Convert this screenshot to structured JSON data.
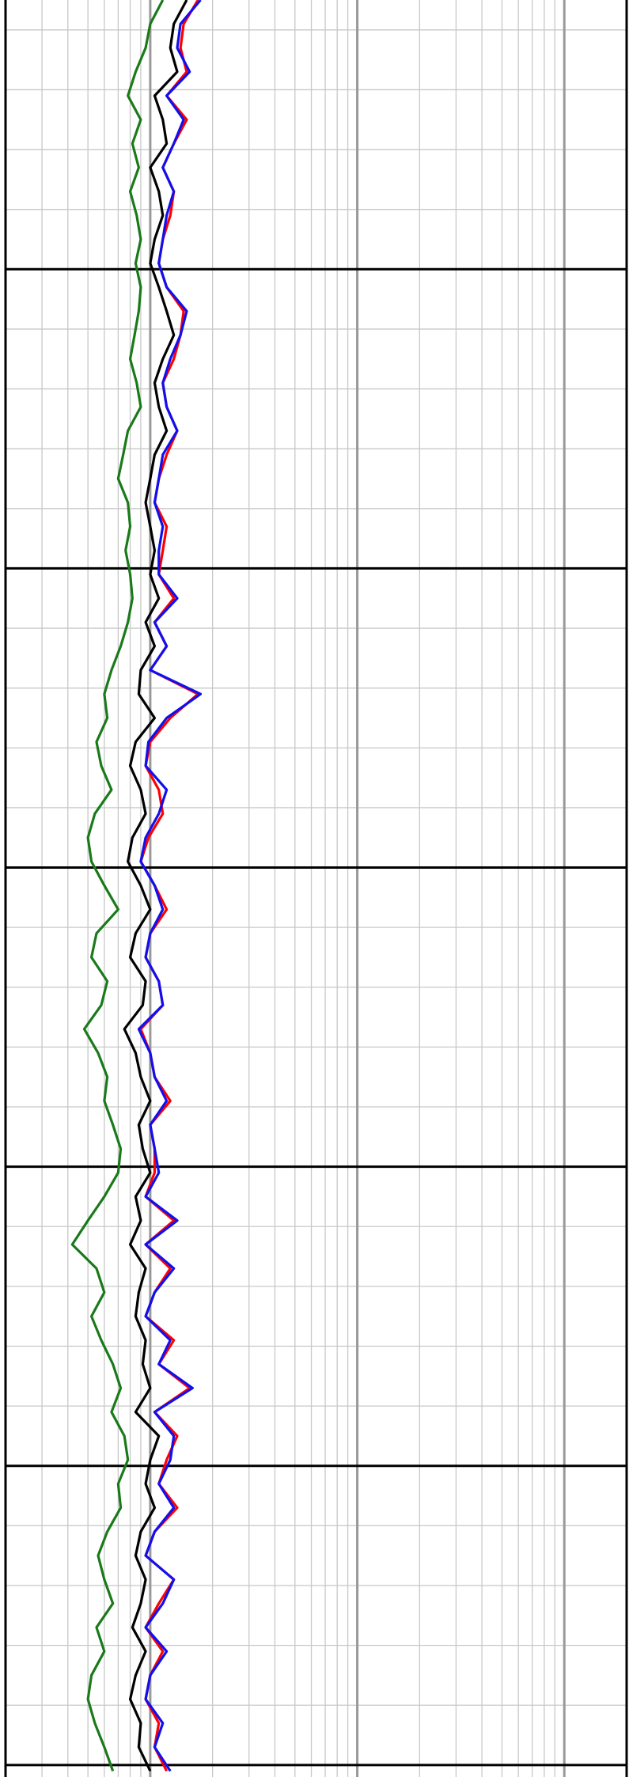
{
  "chart_data": {
    "type": "line",
    "xscale": "log",
    "grid": true,
    "xlim": [
      0.2,
      200
    ],
    "xticks": [
      1,
      10,
      100
    ],
    "xminor_ticks": [
      0.3,
      0.4,
      0.5,
      0.6,
      0.7,
      0.8,
      0.9,
      2,
      3,
      4,
      5,
      6,
      7,
      8,
      9,
      20,
      30,
      40,
      50,
      60,
      70,
      80,
      90
    ],
    "ylim": [
      0,
      297
    ],
    "yinverted": true,
    "yticks": [
      45,
      95,
      145,
      195,
      245,
      295
    ],
    "yminor_ticks": [
      5,
      15,
      25,
      35,
      55,
      65,
      75,
      85,
      105,
      115,
      125,
      135,
      155,
      165,
      175,
      185,
      205,
      215,
      225,
      235,
      255,
      265,
      275,
      285
    ],
    "y": [
      0,
      4,
      8,
      12,
      16,
      20,
      24,
      28,
      32,
      36,
      40,
      44,
      48,
      52,
      56,
      60,
      64,
      68,
      72,
      76,
      80,
      84,
      88,
      92,
      96,
      100,
      104,
      108,
      112,
      116,
      120,
      124,
      128,
      132,
      136,
      140,
      144,
      148,
      152,
      156,
      160,
      164,
      168,
      172,
      176,
      180,
      184,
      188,
      192,
      196,
      200,
      204,
      208,
      212,
      216,
      220,
      224,
      228,
      232,
      236,
      240,
      244,
      248,
      252,
      256,
      260,
      264,
      268,
      272,
      276,
      280,
      284,
      288,
      292,
      296
    ],
    "series": [
      {
        "color": "#1a7a1a",
        "values": [
          1.15,
          1.0,
          0.95,
          0.85,
          0.78,
          0.9,
          0.82,
          0.88,
          0.8,
          0.86,
          0.9,
          0.85,
          0.9,
          0.88,
          0.84,
          0.8,
          0.86,
          0.9,
          0.78,
          0.74,
          0.7,
          0.78,
          0.8,
          0.76,
          0.8,
          0.82,
          0.78,
          0.72,
          0.65,
          0.6,
          0.62,
          0.55,
          0.58,
          0.65,
          0.54,
          0.5,
          0.52,
          0.6,
          0.7,
          0.55,
          0.52,
          0.62,
          0.58,
          0.48,
          0.56,
          0.62,
          0.6,
          0.66,
          0.72,
          0.7,
          0.6,
          0.5,
          0.42,
          0.55,
          0.6,
          0.52,
          0.58,
          0.66,
          0.72,
          0.65,
          0.75,
          0.78,
          0.7,
          0.72,
          0.62,
          0.56,
          0.6,
          0.66,
          0.55,
          0.6,
          0.52,
          0.5,
          0.54,
          0.6,
          0.66
        ]
      },
      {
        "color": "#000000",
        "values": [
          1.5,
          1.3,
          1.25,
          1.35,
          1.05,
          1.15,
          1.2,
          1.0,
          1.1,
          1.15,
          1.05,
          1.0,
          1.1,
          1.2,
          1.3,
          1.15,
          1.05,
          1.1,
          1.2,
          1.05,
          1.0,
          0.95,
          1.0,
          1.05,
          1.0,
          1.1,
          0.95,
          1.05,
          0.9,
          0.88,
          1.05,
          0.85,
          0.8,
          0.9,
          0.95,
          0.82,
          0.78,
          0.9,
          1.0,
          0.85,
          0.8,
          0.95,
          0.92,
          0.75,
          0.85,
          0.9,
          1.0,
          0.88,
          0.92,
          1.0,
          0.85,
          0.9,
          0.8,
          0.95,
          0.88,
          0.85,
          0.95,
          0.92,
          1.0,
          0.85,
          1.1,
          1.0,
          0.95,
          1.05,
          0.9,
          0.85,
          0.95,
          0.9,
          0.82,
          0.95,
          0.85,
          0.8,
          0.9,
          0.88,
          1.0
        ]
      },
      {
        "color": "#ff0000",
        "values": [
          1.7,
          1.45,
          1.4,
          1.5,
          1.2,
          1.5,
          1.3,
          1.15,
          1.3,
          1.25,
          1.15,
          1.1,
          1.2,
          1.45,
          1.4,
          1.3,
          1.15,
          1.2,
          1.35,
          1.2,
          1.1,
          1.05,
          1.2,
          1.15,
          1.1,
          1.3,
          1.05,
          1.2,
          1.0,
          1.7,
          1.25,
          1.0,
          0.95,
          1.1,
          1.15,
          0.98,
          0.9,
          1.05,
          1.2,
          1.0,
          0.95,
          1.1,
          1.15,
          0.9,
          1.0,
          1.05,
          1.25,
          1.0,
          1.05,
          1.05,
          0.95,
          1.3,
          0.95,
          1.25,
          1.05,
          0.95,
          1.3,
          1.1,
          1.55,
          1.05,
          1.35,
          1.2,
          1.1,
          1.35,
          1.05,
          0.95,
          1.3,
          1.1,
          0.95,
          1.15,
          1.0,
          0.95,
          1.1,
          1.05,
          1.2
        ]
      },
      {
        "color": "#1010ee",
        "values": [
          1.75,
          1.4,
          1.35,
          1.55,
          1.2,
          1.45,
          1.3,
          1.15,
          1.3,
          1.2,
          1.15,
          1.1,
          1.2,
          1.5,
          1.4,
          1.25,
          1.15,
          1.2,
          1.35,
          1.15,
          1.1,
          1.05,
          1.15,
          1.1,
          1.1,
          1.35,
          1.05,
          1.2,
          1.0,
          1.75,
          1.2,
          0.98,
          0.95,
          1.2,
          1.1,
          0.95,
          0.9,
          1.05,
          1.15,
          1.0,
          0.95,
          1.1,
          1.15,
          0.88,
          1.0,
          1.05,
          1.2,
          1.0,
          1.05,
          1.1,
          0.95,
          1.35,
          0.95,
          1.3,
          1.05,
          0.95,
          1.25,
          1.1,
          1.6,
          1.05,
          1.3,
          1.25,
          1.1,
          1.3,
          1.05,
          0.95,
          1.3,
          1.15,
          0.95,
          1.2,
          1.0,
          0.95,
          1.15,
          1.05,
          1.25
        ]
      }
    ]
  }
}
